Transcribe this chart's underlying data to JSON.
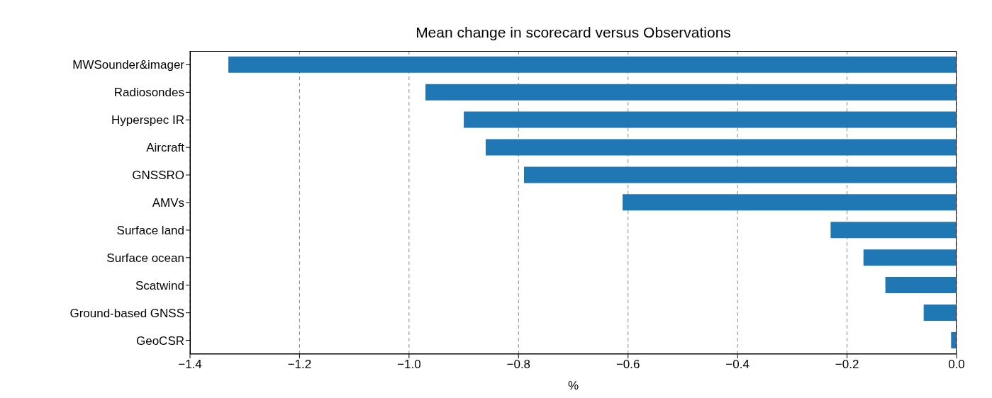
{
  "chart_data": {
    "type": "bar",
    "orientation": "horizontal",
    "title": "Mean change in scorecard versus Observations",
    "xlabel": "%",
    "categories": [
      "MWSounder&imager",
      "Radiosondes",
      "Hyperspec IR",
      "Aircraft",
      "GNSSRO",
      "AMVs",
      "Surface land",
      "Surface ocean",
      "Scatwind",
      "Ground-based GNSS",
      "GeoCSR"
    ],
    "values": [
      -1.33,
      -0.97,
      -0.9,
      -0.86,
      -0.79,
      -0.61,
      -0.23,
      -0.17,
      -0.13,
      -0.06,
      -0.01
    ],
    "color": "#1f77b4",
    "xlim": [
      -1.4,
      0
    ],
    "xticks": [
      {
        "value": -1.4,
        "label": "−1.4"
      },
      {
        "value": -1.2,
        "label": "−1.2"
      },
      {
        "value": -1.0,
        "label": "−1.0"
      },
      {
        "value": -0.8,
        "label": "−0.8"
      },
      {
        "value": -0.6,
        "label": "−0.6"
      },
      {
        "value": -0.4,
        "label": "−0.4"
      },
      {
        "value": -0.2,
        "label": "−0.2"
      },
      {
        "value": 0,
        "label": "0.0"
      }
    ],
    "grid": "x"
  }
}
